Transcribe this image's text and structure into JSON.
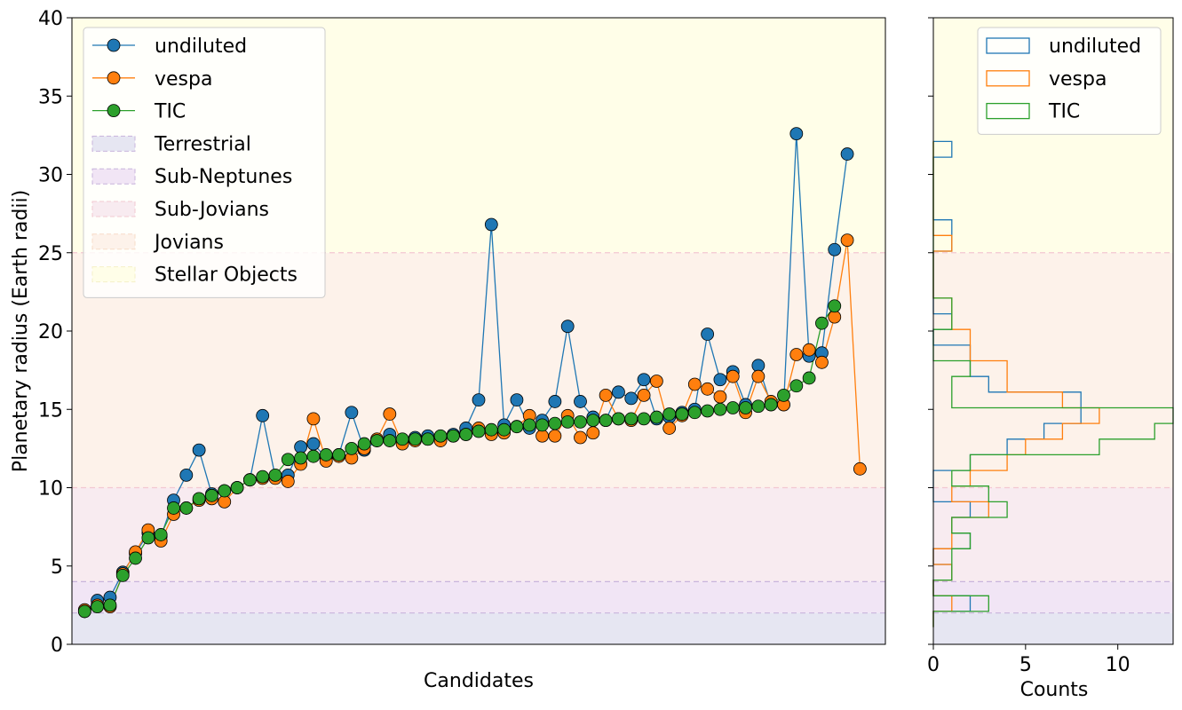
{
  "chart_data": [
    {
      "type": "line",
      "xlabel": "Candidates",
      "ylabel": "Planetary radius (Earth radii)",
      "ylim": [
        0,
        40
      ],
      "yticks": [
        0,
        5,
        10,
        15,
        20,
        25,
        30,
        35,
        40
      ],
      "x_ticks_shown": false,
      "legend_position": "top-left",
      "regions": [
        {
          "name": "Terrestrial",
          "from": 0,
          "to": 2,
          "color": "#e6e6f2"
        },
        {
          "name": "Sub-Neptunes",
          "from": 2,
          "to": 4,
          "color": "#f1e5f5"
        },
        {
          "name": "Sub-Jovians",
          "from": 4,
          "to": 10,
          "color": "#f8ebf0"
        },
        {
          "name": "Jovians",
          "from": 10,
          "to": 25,
          "color": "#fdf2ea"
        },
        {
          "name": "Stellar Objects",
          "from": 25,
          "to": 40,
          "color": "#fffee8"
        }
      ],
      "series": [
        {
          "name": "undiluted",
          "color": "#1f77b4",
          "values": [
            2.1,
            2.8,
            3.0,
            4.6,
            5.8,
            7.1,
            6.9,
            9.2,
            10.8,
            12.4,
            9.6,
            9.8,
            10.0,
            10.5,
            14.6,
            10.7,
            10.8,
            12.6,
            12.8,
            11.9,
            12.1,
            14.8,
            12.4,
            13.0,
            13.4,
            13.0,
            13.2,
            13.3,
            13.2,
            13.4,
            13.8,
            15.6,
            26.8,
            14.0,
            15.6,
            13.8,
            14.3,
            15.5,
            20.3,
            15.5,
            14.5,
            14.3,
            16.1,
            15.7,
            16.9,
            14.4,
            14.5,
            14.8,
            15.0,
            19.8,
            16.9,
            17.4,
            15.3,
            17.8,
            15.3,
            15.3,
            32.6,
            18.4,
            18.6,
            25.2,
            31.3
          ]
        },
        {
          "name": "vespa",
          "color": "#ff7f0e",
          "values": [
            2.2,
            2.5,
            2.4,
            4.5,
            5.9,
            7.3,
            6.6,
            8.3,
            8.7,
            9.2,
            9.3,
            9.1,
            10.0,
            10.5,
            10.6,
            10.6,
            10.4,
            11.5,
            14.4,
            11.7,
            12.0,
            11.9,
            12.5,
            13.1,
            14.7,
            12.8,
            13.0,
            13.1,
            13.0,
            13.3,
            13.4,
            13.8,
            13.4,
            13.5,
            13.9,
            14.6,
            13.3,
            13.3,
            14.6,
            13.2,
            13.5,
            15.9,
            14.4,
            14.3,
            15.9,
            16.8,
            13.8,
            14.6,
            16.6,
            16.3,
            15.8,
            17.1,
            14.8,
            17.1,
            15.5,
            15.3,
            18.5,
            18.8,
            18.0,
            20.9,
            25.8,
            11.2
          ]
        },
        {
          "name": "TIC",
          "color": "#2ca02c",
          "values": [
            2.1,
            2.4,
            2.5,
            4.4,
            5.5,
            6.8,
            7.0,
            8.7,
            8.7,
            9.3,
            9.5,
            9.8,
            10.0,
            10.5,
            10.7,
            10.8,
            11.8,
            11.9,
            12.0,
            12.1,
            12.1,
            12.5,
            12.8,
            13.0,
            13.0,
            13.1,
            13.1,
            13.1,
            13.3,
            13.3,
            13.4,
            13.6,
            13.7,
            13.7,
            13.9,
            14.0,
            14.0,
            14.1,
            14.2,
            14.2,
            14.3,
            14.3,
            14.4,
            14.4,
            14.4,
            14.5,
            14.7,
            14.7,
            14.8,
            14.9,
            15.0,
            15.1,
            15.1,
            15.2,
            15.3,
            15.9,
            16.5,
            17.0,
            20.5,
            21.6
          ]
        }
      ]
    },
    {
      "type": "histogram",
      "orientation": "horizontal",
      "xlabel": "Counts",
      "xlim": [
        0,
        13
      ],
      "xticks": [
        0,
        5,
        10
      ],
      "ylim": [
        0,
        40
      ],
      "legend_position": "top-right",
      "bin_edges": [
        1.1,
        2.1,
        3.1,
        4.1,
        5.1,
        6.1,
        7.1,
        8.1,
        9.1,
        10.1,
        11.1,
        12.1,
        13.1,
        14.1,
        15.1,
        16.1,
        17.1,
        18.1,
        19.1,
        20.1,
        21.1,
        22.1,
        23.1,
        24.1,
        25.1,
        26.1,
        27.1,
        28.1,
        29.1,
        30.1,
        31.1,
        32.1
      ],
      "series": [
        {
          "name": "undiluted",
          "color": "#1f77b4",
          "counts": [
            0,
            2,
            0,
            1,
            0,
            2,
            1,
            2,
            0,
            0,
            2,
            4,
            6,
            8,
            8,
            3,
            2,
            2,
            0,
            1,
            0,
            0,
            0,
            0,
            1,
            1,
            0,
            0,
            0,
            0,
            1
          ]
        },
        {
          "name": "vespa",
          "color": "#ff7f0e",
          "counts": [
            0,
            1,
            0,
            1,
            0,
            1,
            1,
            3,
            1,
            2,
            4,
            5,
            7,
            9,
            7,
            4,
            4,
            2,
            2,
            1,
            1,
            0,
            0,
            0,
            1,
            0,
            0,
            0,
            0,
            0,
            0
          ]
        },
        {
          "name": "TIC",
          "color": "#2ca02c",
          "counts": [
            0,
            3,
            0,
            1,
            1,
            2,
            1,
            4,
            3,
            1,
            2,
            9,
            12,
            13,
            1,
            1,
            2,
            0,
            0,
            1,
            1,
            0,
            0,
            0,
            0,
            0,
            0,
            0,
            0,
            0,
            0
          ]
        }
      ]
    }
  ]
}
